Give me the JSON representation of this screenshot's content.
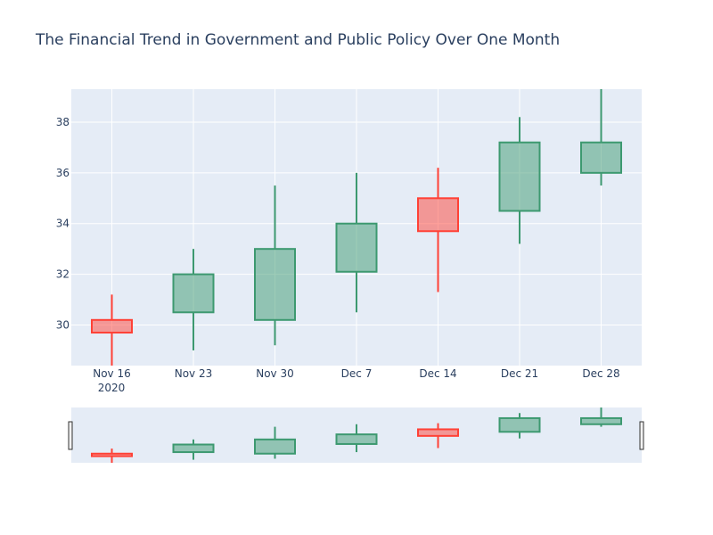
{
  "chart_data": {
    "type": "candlestick",
    "title": "The Financial Trend in Government and Public Policy Over One Month",
    "xlabel": "",
    "ylabel": "",
    "x_tick_labels": [
      "Nov 16",
      "Nov 23",
      "Nov 30",
      "Dec 7",
      "Dec 14",
      "Dec 21",
      "Dec 28"
    ],
    "x_tick_sublabel": "2020",
    "y_ticks": [
      30,
      32,
      34,
      36,
      38
    ],
    "ylim": [
      28.4,
      39.3
    ],
    "range_slider_ylim": [
      28.4,
      39.3
    ],
    "increasing_color": "#3d9970",
    "decreasing_color": "#ff4136",
    "plot_background": "#e5ecf6",
    "grid": true,
    "rangeslider": true,
    "series": [
      {
        "date": "Nov 16",
        "open": 30.2,
        "high": 31.2,
        "low": 28.4,
        "close": 29.7
      },
      {
        "date": "Nov 23",
        "open": 30.5,
        "high": 33.0,
        "low": 29.0,
        "close": 32.0
      },
      {
        "date": "Nov 30",
        "open": 30.2,
        "high": 35.5,
        "low": 29.2,
        "close": 33.0
      },
      {
        "date": "Dec 7",
        "open": 32.1,
        "high": 36.0,
        "low": 30.5,
        "close": 34.0
      },
      {
        "date": "Dec 14",
        "open": 35.0,
        "high": 36.2,
        "low": 31.3,
        "close": 33.7
      },
      {
        "date": "Dec 21",
        "open": 34.5,
        "high": 38.2,
        "low": 33.2,
        "close": 37.2
      },
      {
        "date": "Dec 28",
        "open": 36.0,
        "high": 39.3,
        "low": 35.5,
        "close": 37.2
      }
    ]
  }
}
